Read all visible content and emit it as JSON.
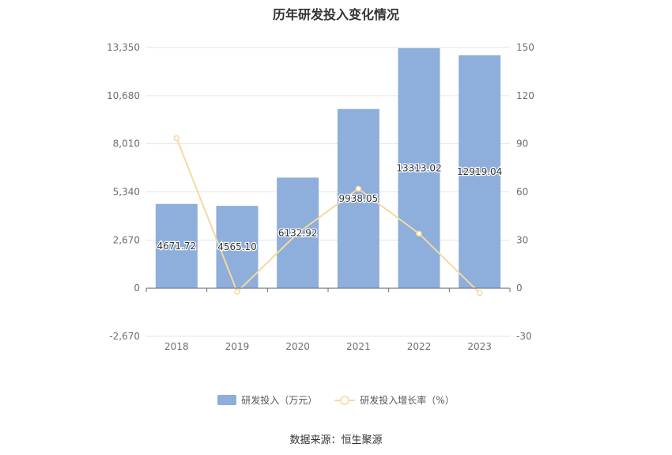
{
  "chart_data": {
    "type": "bar",
    "title": "历年研发投入变化情况",
    "categories": [
      "2018",
      "2019",
      "2020",
      "2021",
      "2022",
      "2023"
    ],
    "series": [
      {
        "name": "研发投入（万元）",
        "type": "bar",
        "axis": "left",
        "values": [
          4671.72,
          4565.1,
          6132.92,
          9938.05,
          13313.02,
          12919.04
        ],
        "labels": [
          "4671.72",
          "4565.10",
          "6132.92",
          "9938.05",
          "13313.02",
          "12919.04"
        ],
        "color": "#8eaedb"
      },
      {
        "name": "研发投入增长率（%）",
        "type": "line",
        "axis": "right",
        "values": [
          93.5,
          -2.3,
          34.3,
          62.0,
          34.0,
          -3.0
        ],
        "color": "#f5d9a0"
      }
    ],
    "y_left": {
      "ticks": [
        "13,350",
        "10,680",
        "8,010",
        "5,340",
        "2,670",
        "0",
        "-2,670"
      ],
      "min": -2670,
      "max": 13350
    },
    "y_right": {
      "ticks": [
        "150",
        "120",
        "90",
        "60",
        "30",
        "0",
        "-30"
      ],
      "min": -30,
      "max": 150
    },
    "grid": true,
    "legend_position": "bottom"
  },
  "source": "数据来源：恒生聚源"
}
